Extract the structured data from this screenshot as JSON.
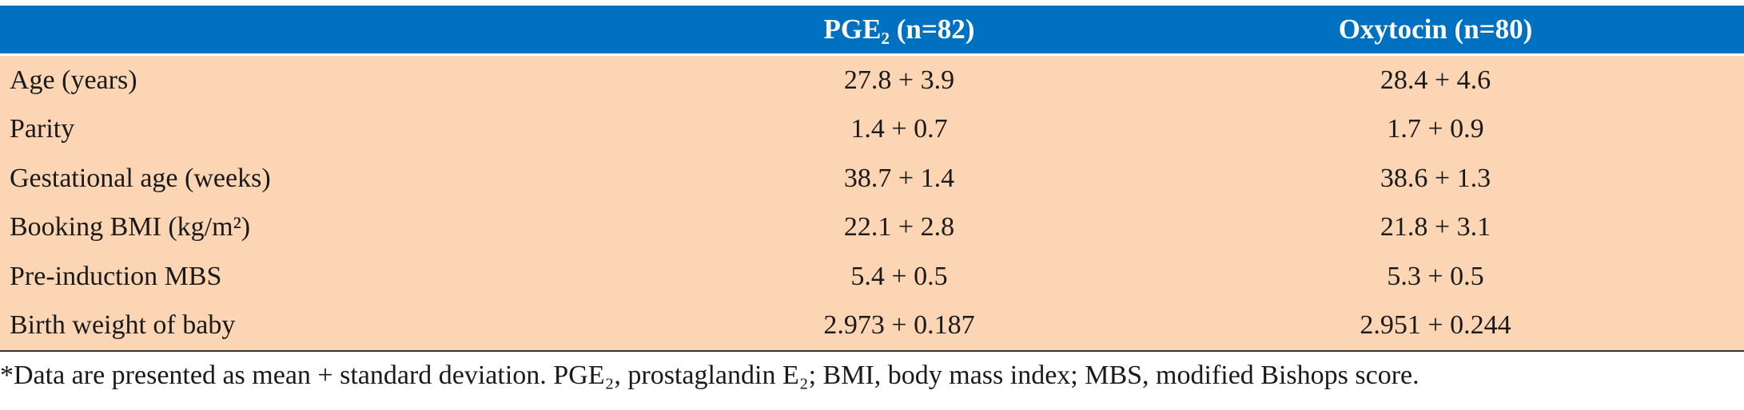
{
  "table": {
    "header": [
      "PGE₂ (n=82)",
      "Oxytocin (n=80)"
    ],
    "rows": [
      [
        "Age (years)",
        "27.8 + 3.9",
        "28.4 + 4.6"
      ],
      [
        "Parity",
        "1.4 + 0.7",
        "1.7 + 0.9"
      ],
      [
        "Gestational age (weeks)",
        "38.7 + 1.4",
        "38.6 + 1.3"
      ],
      [
        "Booking BMI (kg/m²)",
        "22.1 + 2.8",
        "21.8 + 3.1"
      ],
      [
        "Pre-induction MBS",
        "5.4 + 0.5",
        "5.3 + 0.5"
      ],
      [
        "Birth weight of baby",
        "2.973 + 0.187",
        "2.951 + 0.244"
      ]
    ],
    "footnote": "*Data are presented as mean + standard deviation. PGE₂, prostaglandin E₂; BMI, body mass index; MBS, modified Bishops score."
  }
}
